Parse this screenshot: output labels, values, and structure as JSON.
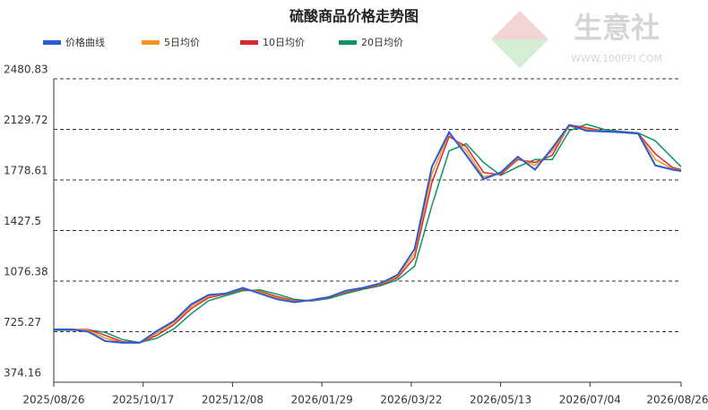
{
  "chart_data": {
    "type": "line",
    "title": "硫酸商品价格走势图",
    "watermark": {
      "name": "生意社",
      "url": "WWW.100PPI.COM"
    },
    "x": [
      "2025/08/26",
      "2025/09/05",
      "2025/09/15",
      "2025/09/25",
      "2025/10/05",
      "2025/10/15",
      "2025/10/25",
      "2025/11/04",
      "2025/11/14",
      "2025/11/24",
      "2025/12/04",
      "2025/12/14",
      "2025/12/24",
      "2026/01/03",
      "2026/01/13",
      "2026/01/23",
      "2026/02/02",
      "2026/02/12",
      "2026/02/22",
      "2026/03/04",
      "2026/03/14",
      "2026/03/24",
      "2026/04/03",
      "2026/04/13",
      "2026/04/23",
      "2026/05/03",
      "2026/05/13",
      "2026/05/23",
      "2026/06/02",
      "2026/06/12",
      "2026/06/22",
      "2026/07/02",
      "2026/07/12",
      "2026/07/22",
      "2026/08/01",
      "2026/08/11",
      "2026/08/21",
      "2026/08/26"
    ],
    "xlim": [
      "2025/08/26",
      "2026/08/26"
    ],
    "xticks": [
      "2025/08/26",
      "2025/10/17",
      "2025/12/08",
      "2026/01/29",
      "2026/03/22",
      "2026/05/13",
      "2026/07/04",
      "2026/08/26"
    ],
    "ylim": [
      374.16,
      2480.83
    ],
    "yticks": [
      374.16,
      725.27,
      1076.38,
      1427.5,
      1778.61,
      2129.72,
      2480.83
    ],
    "grid": true,
    "legend": "top-left",
    "series": [
      {
        "name": "价格曲线",
        "color": "#2a5bd7",
        "values": [
          741,
          741,
          725,
          660,
          648,
          648,
          730,
          800,
          915,
          980,
          990,
          1030,
          990,
          950,
          930,
          945,
          965,
          1010,
          1030,
          1060,
          1120,
          1300,
          1870,
          2110,
          1950,
          1785,
          1830,
          1940,
          1850,
          2000,
          2160,
          2120,
          2115,
          2110,
          2100,
          1880,
          1850,
          1841
        ]
      },
      {
        "name": "5日均价",
        "color": "#f7941d",
        "values": [
          741,
          741,
          735,
          680,
          650,
          648,
          715,
          790,
          900,
          970,
          988,
          1025,
          1000,
          960,
          935,
          942,
          962,
          1005,
          1028,
          1055,
          1110,
          1270,
          1820,
          2100,
          1980,
          1800,
          1825,
          1930,
          1880,
          1980,
          2150,
          2130,
          2115,
          2110,
          2100,
          1920,
          1855,
          1845
        ]
      },
      {
        "name": "10日均价",
        "color": "#d7282f",
        "values": [
          741,
          741,
          740,
          700,
          655,
          648,
          700,
          775,
          885,
          960,
          985,
          1020,
          1005,
          968,
          940,
          940,
          960,
          1000,
          1025,
          1050,
          1100,
          1240,
          1760,
          2080,
          2010,
          1830,
          1815,
          1920,
          1900,
          1950,
          2160,
          2140,
          2118,
          2112,
          2102,
          1960,
          1865,
          1850
        ]
      },
      {
        "name": "20日均价",
        "color": "#0a9462",
        "values": [
          735,
          735,
          738,
          720,
          670,
          650,
          680,
          745,
          850,
          940,
          975,
          1010,
          1015,
          985,
          950,
          938,
          955,
          990,
          1020,
          1045,
          1085,
          1180,
          1600,
          1980,
          2030,
          1900,
          1810,
          1870,
          1920,
          1920,
          2120,
          2165,
          2130,
          2115,
          2105,
          2050,
          1930,
          1870
        ]
      }
    ]
  }
}
